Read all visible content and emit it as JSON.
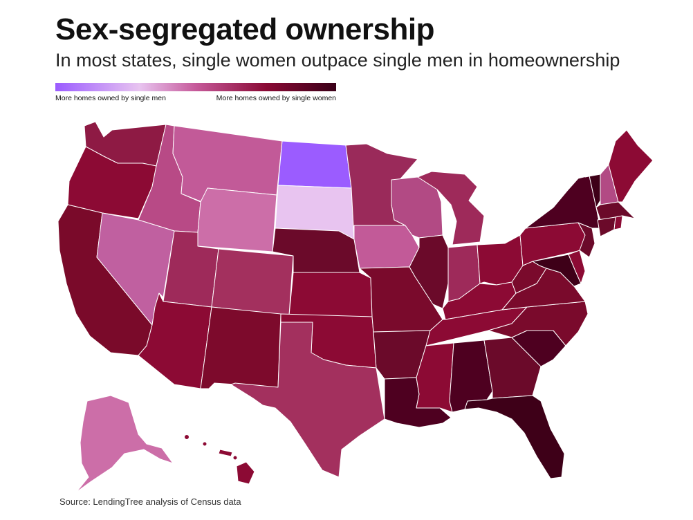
{
  "title": "Sex-segregated ownership",
  "subtitle": "In most states, single women outpace single men in homeownership",
  "legend": {
    "left_label": "More homes owned by single men",
    "right_label": "More homes owned by single women"
  },
  "source": "Source: LendingTree analysis of Census data",
  "colors": {
    "men_strong": "#9b5cff",
    "men_light": "#e8c4f0",
    "pink": "#c65a9a",
    "mid": "#a3305e",
    "red": "#8c0a34",
    "dark": "#6b0a2a",
    "darkest": "#3e0018"
  },
  "states": [
    {
      "code": "WA",
      "color": "#8e1a44"
    },
    {
      "code": "OR",
      "color": "#8c0a34"
    },
    {
      "code": "CA",
      "color": "#7a0a2a"
    },
    {
      "code": "ID",
      "color": "#b84a86"
    },
    {
      "code": "NV",
      "color": "#c060a0"
    },
    {
      "code": "MT",
      "color": "#c25a98"
    },
    {
      "code": "WY",
      "color": "#cc6ea8"
    },
    {
      "code": "UT",
      "color": "#9e2a5a"
    },
    {
      "code": "AZ",
      "color": "#8c0a34"
    },
    {
      "code": "CO",
      "color": "#a3305e"
    },
    {
      "code": "NM",
      "color": "#7d0a2c"
    },
    {
      "code": "ND",
      "color": "#9b5cff"
    },
    {
      "code": "SD",
      "color": "#e8c4f0"
    },
    {
      "code": "NE",
      "color": "#6b0a2a"
    },
    {
      "code": "KS",
      "color": "#8c0a34"
    },
    {
      "code": "OK",
      "color": "#8c0a34"
    },
    {
      "code": "TX",
      "color": "#a3305e"
    },
    {
      "code": "MN",
      "color": "#9a2a5a"
    },
    {
      "code": "IA",
      "color": "#c25a98"
    },
    {
      "code": "MO",
      "color": "#7a0a2c"
    },
    {
      "code": "AR",
      "color": "#6b0a2a"
    },
    {
      "code": "LA",
      "color": "#4e0020"
    },
    {
      "code": "WI",
      "color": "#b24a84"
    },
    {
      "code": "IL",
      "color": "#6b0a2a"
    },
    {
      "code": "MI",
      "color": "#9e2a5a"
    },
    {
      "code": "IN",
      "color": "#9e2a5a"
    },
    {
      "code": "OH",
      "color": "#8c0a34"
    },
    {
      "code": "KY",
      "color": "#8c0a34"
    },
    {
      "code": "TN",
      "color": "#8c0a34"
    },
    {
      "code": "MS",
      "color": "#8c0a34"
    },
    {
      "code": "AL",
      "color": "#4e0020"
    },
    {
      "code": "GA",
      "color": "#6b0a2a"
    },
    {
      "code": "FL",
      "color": "#3e0018"
    },
    {
      "code": "SC",
      "color": "#4e0020"
    },
    {
      "code": "NC",
      "color": "#7a0a2c"
    },
    {
      "code": "VA",
      "color": "#7a0a2c"
    },
    {
      "code": "WV",
      "color": "#7a0a2c"
    },
    {
      "code": "PA",
      "color": "#8c0a34"
    },
    {
      "code": "NY",
      "color": "#4e0020"
    },
    {
      "code": "NJ",
      "color": "#6b0a2a"
    },
    {
      "code": "DE",
      "color": "#8c0a34"
    },
    {
      "code": "MD",
      "color": "#3e0018"
    },
    {
      "code": "VT",
      "color": "#3e0018"
    },
    {
      "code": "NH",
      "color": "#b24a84"
    },
    {
      "code": "ME",
      "color": "#8c0a34"
    },
    {
      "code": "MA",
      "color": "#6b0a2a"
    },
    {
      "code": "CT",
      "color": "#6b0a2a"
    },
    {
      "code": "RI",
      "color": "#8c0a34"
    },
    {
      "code": "AK",
      "color": "#cc6ea8"
    },
    {
      "code": "HI",
      "color": "#8c0a34"
    }
  ]
}
